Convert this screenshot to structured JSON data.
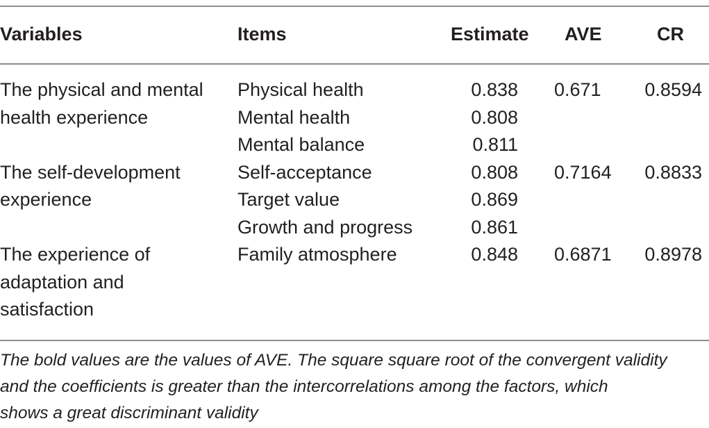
{
  "table": {
    "headers": {
      "variables": "Variables",
      "items": "Items",
      "estimate": "Estimate",
      "ave": "AVE",
      "cr": "CR"
    },
    "groups": [
      {
        "variable_lines": [
          "The physical and mental",
          "health experience"
        ],
        "ave": "0.671",
        "cr": "0.8594",
        "rows": [
          {
            "item": "Physical health",
            "estimate": "0.838"
          },
          {
            "item": "Mental health",
            "estimate": "0.808"
          },
          {
            "item": "Mental balance",
            "estimate": "0.811"
          }
        ]
      },
      {
        "variable_lines": [
          "The self-development",
          "experience"
        ],
        "ave": "0.7164",
        "cr": "0.8833",
        "rows": [
          {
            "item": "Self-acceptance",
            "estimate": "0.808"
          },
          {
            "item": "Target value",
            "estimate": "0.869"
          },
          {
            "item": "Growth and progress",
            "estimate": "0.861"
          }
        ]
      },
      {
        "variable_lines": [
          "The experience of",
          "adaptation and",
          "satisfaction"
        ],
        "ave": "0.6871",
        "cr": "0.8978",
        "rows": [
          {
            "item": "Family atmosphere",
            "estimate": "0.848"
          }
        ]
      }
    ]
  },
  "footnote": {
    "lines": [
      "The bold values are the values of AVE. The square square root of the convergent validity",
      "and the coefficients is greater than the intercorrelations among the factors, which",
      "shows a great discriminant validity"
    ]
  }
}
